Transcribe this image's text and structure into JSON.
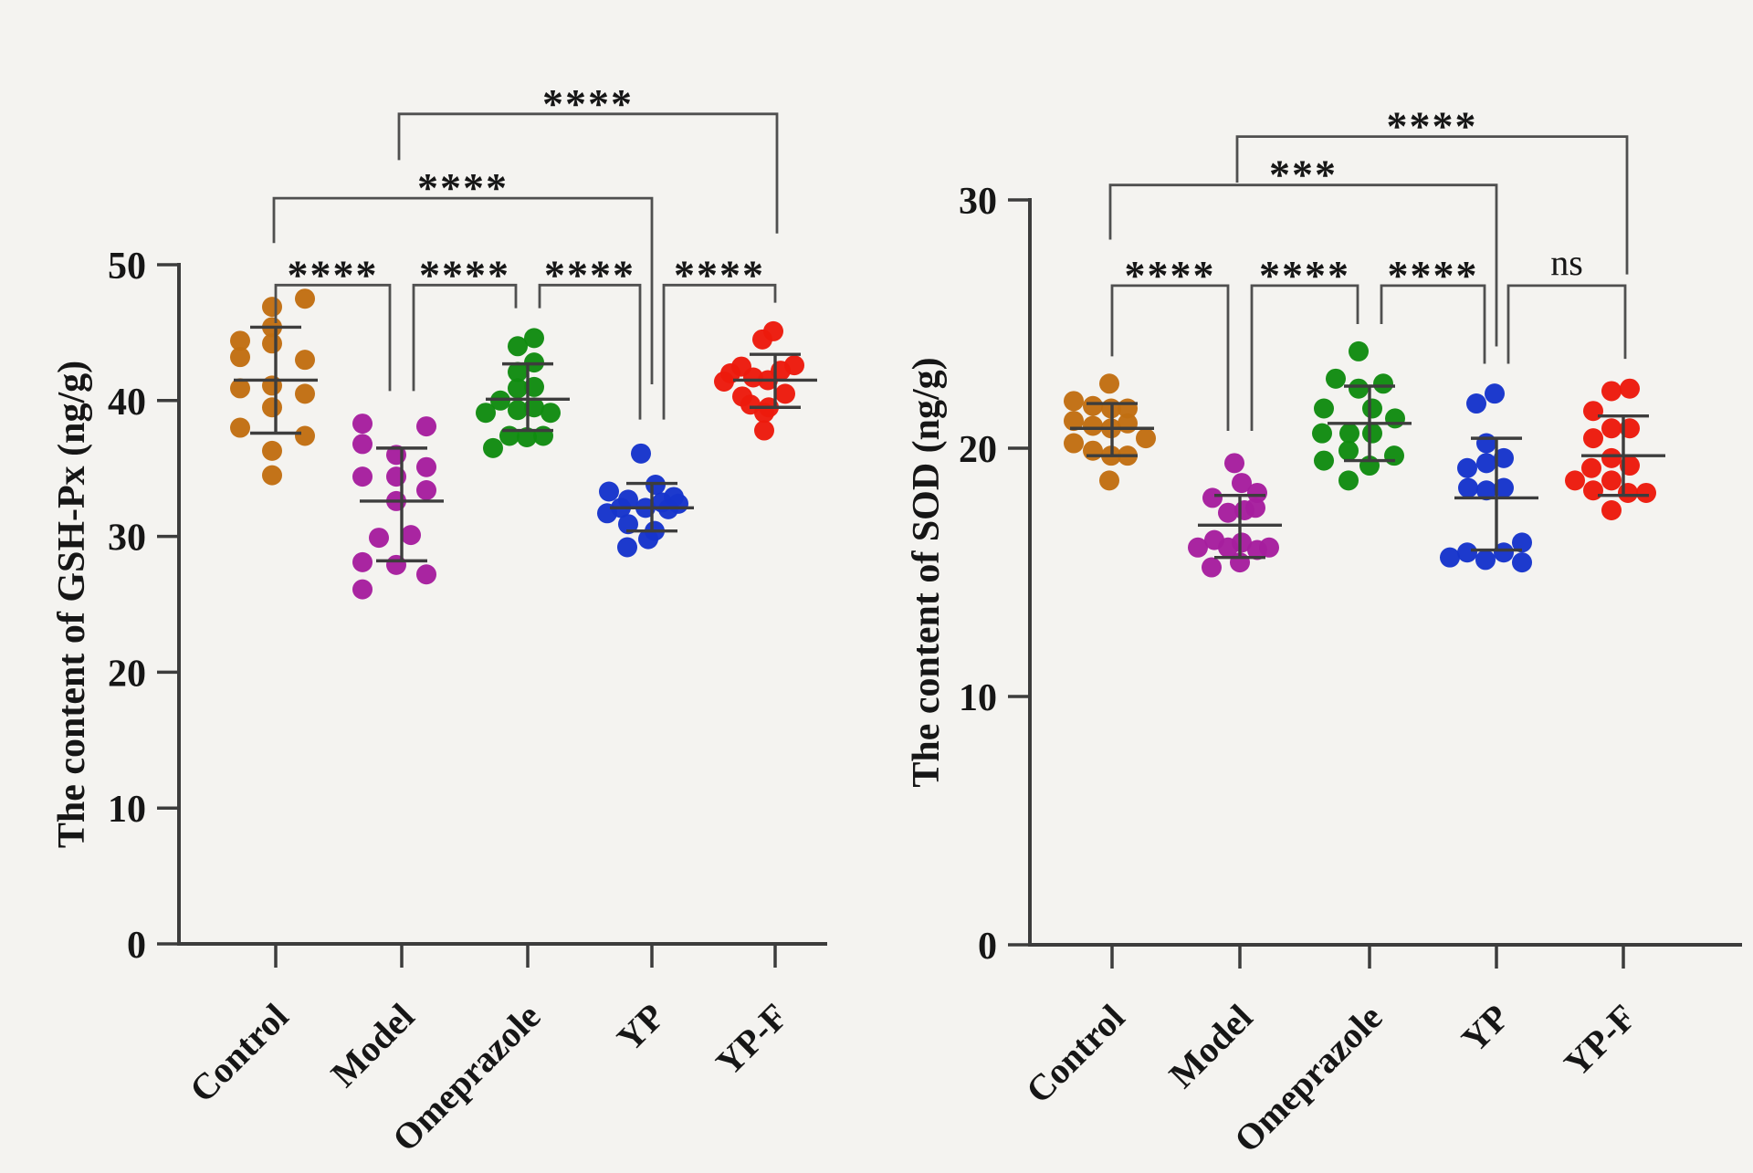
{
  "figure": {
    "background": "#f4f3f0",
    "description": "Two GraphPad-style column scatter plots with mean ± SD error bars and significance brackets"
  },
  "chart_data": [
    {
      "type": "scatter",
      "title": "",
      "xlabel": "",
      "ylabel": "The content of GSH-Px (ng/g)",
      "ylim": [
        0,
        50
      ],
      "yticks": [
        0,
        10,
        20,
        30,
        40,
        50
      ],
      "grid": false,
      "legend_position": "none",
      "categories": [
        "Control",
        "Model",
        "Omeprazole",
        "YP",
        "YP-F"
      ],
      "groups": [
        {
          "name": "Control",
          "color": "#c16e12",
          "mean": 41.5,
          "sd_high": 45.4,
          "sd_low": 37.6,
          "points": [
            [
              47.5,
              32
            ],
            [
              46.9,
              -4
            ],
            [
              45.4,
              -4
            ],
            [
              44.4,
              -39
            ],
            [
              44.2,
              -4
            ],
            [
              43.2,
              -39
            ],
            [
              43.0,
              32
            ],
            [
              41.1,
              -4
            ],
            [
              40.9,
              -39
            ],
            [
              40.5,
              32
            ],
            [
              39.5,
              -4
            ],
            [
              38.0,
              -39
            ],
            [
              37.4,
              32
            ],
            [
              36.3,
              -4
            ],
            [
              34.5,
              -4
            ]
          ]
        },
        {
          "name": "Model",
          "color": "#a61e9e",
          "mean": 32.6,
          "sd_high": 36.5,
          "sd_low": 28.2,
          "points": [
            [
              38.3,
              -43
            ],
            [
              38.1,
              27
            ],
            [
              36.8,
              -43
            ],
            [
              36.0,
              -6
            ],
            [
              35.1,
              27
            ],
            [
              34.4,
              -43
            ],
            [
              34.4,
              -6
            ],
            [
              33.4,
              27
            ],
            [
              32.6,
              -6
            ],
            [
              30.1,
              10
            ],
            [
              29.9,
              -25
            ],
            [
              28.1,
              -43
            ],
            [
              27.9,
              -6
            ],
            [
              27.2,
              27
            ],
            [
              26.1,
              -43
            ]
          ]
        },
        {
          "name": "Omeprazole",
          "color": "#118b11",
          "mean": 40.1,
          "sd_high": 42.7,
          "sd_low": 37.8,
          "points": [
            [
              44.6,
              7
            ],
            [
              44.0,
              -11
            ],
            [
              42.8,
              7
            ],
            [
              42.1,
              -11
            ],
            [
              41.0,
              7
            ],
            [
              40.9,
              -11
            ],
            [
              40.0,
              -30
            ],
            [
              39.5,
              7
            ],
            [
              39.3,
              -11
            ],
            [
              39.1,
              -46
            ],
            [
              39.1,
              25
            ],
            [
              37.4,
              -20
            ],
            [
              37.3,
              -1
            ],
            [
              37.4,
              17
            ],
            [
              36.5,
              -38
            ]
          ]
        },
        {
          "name": "YP",
          "color": "#1634cb",
          "mean": 32.1,
          "sd_high": 33.9,
          "sd_low": 30.4,
          "points": [
            [
              36.1,
              -12
            ],
            [
              33.8,
              4
            ],
            [
              33.3,
              -47
            ],
            [
              32.9,
              24
            ],
            [
              32.7,
              -26
            ],
            [
              32.5,
              11
            ],
            [
              32.4,
              29
            ],
            [
              32.1,
              -34
            ],
            [
              32.1,
              -7
            ],
            [
              31.7,
              -49
            ],
            [
              30.9,
              -26
            ],
            [
              30.4,
              3
            ],
            [
              29.8,
              -4
            ],
            [
              29.2,
              -27
            ],
            [
              32.0,
              18
            ]
          ]
        },
        {
          "name": "YP-F",
          "color": "#ec1a0c",
          "mean": 41.5,
          "sd_high": 43.4,
          "sd_low": 39.5,
          "points": [
            [
              45.1,
              -2
            ],
            [
              44.5,
              -14
            ],
            [
              42.6,
              21
            ],
            [
              42.5,
              -37
            ],
            [
              42.2,
              6
            ],
            [
              42.0,
              -49
            ],
            [
              41.7,
              -24
            ],
            [
              41.5,
              -8
            ],
            [
              41.4,
              -56
            ],
            [
              40.5,
              11
            ],
            [
              40.3,
              -36
            ],
            [
              39.7,
              -27
            ],
            [
              39.5,
              -7
            ],
            [
              39.1,
              -12
            ],
            [
              37.8,
              -12
            ]
          ]
        }
      ],
      "comparisons": [
        {
          "a": 0,
          "b": 1,
          "label": "****",
          "bar": 48.5,
          "legA": 45.7,
          "legB": 40.7,
          "offA": 0,
          "offB": -13
        },
        {
          "a": 1,
          "b": 2,
          "label": "****",
          "bar": 48.5,
          "legA": 40.7,
          "legB": 46.8,
          "offA": 13,
          "offB": -13
        },
        {
          "a": 2,
          "b": 3,
          "label": "****",
          "bar": 48.5,
          "legA": 46.8,
          "legB": 38.6,
          "offA": 13,
          "offB": -13
        },
        {
          "a": 3,
          "b": 4,
          "label": "****",
          "bar": 48.5,
          "legA": 38.6,
          "legB": 47.2,
          "offA": 13,
          "offB": 0
        },
        {
          "a": 0,
          "b": 3,
          "label": "****",
          "bar": 54.9,
          "legA": 51.6,
          "legB": 41.2,
          "offA": -2,
          "offB": 0
        },
        {
          "a": 1,
          "b": 4,
          "label": "****",
          "bar": 61.1,
          "legA": 57.7,
          "legB": 52.3,
          "offA": -3,
          "offB": 2
        }
      ]
    },
    {
      "type": "scatter",
      "title": "",
      "xlabel": "",
      "ylabel": "The content of SOD (ng/g)",
      "ylim": [
        0,
        30
      ],
      "yticks": [
        0,
        10,
        20,
        30
      ],
      "grid": false,
      "legend_position": "none",
      "categories": [
        "Control",
        "Model",
        "Omeprazole",
        "YP",
        "YP-F"
      ],
      "groups": [
        {
          "name": "Control",
          "color": "#c16e12",
          "mean": 20.8,
          "sd_high": 21.8,
          "sd_low": 19.7,
          "points": [
            [
              22.6,
              -3
            ],
            [
              21.9,
              -42
            ],
            [
              21.7,
              -21
            ],
            [
              21.6,
              -1
            ],
            [
              21.6,
              17
            ],
            [
              21.1,
              -42
            ],
            [
              20.9,
              -21
            ],
            [
              20.8,
              -1
            ],
            [
              21.0,
              17
            ],
            [
              20.4,
              37
            ],
            [
              20.2,
              -42
            ],
            [
              19.9,
              -21
            ],
            [
              19.7,
              -1
            ],
            [
              19.7,
              17
            ],
            [
              18.7,
              -3
            ]
          ]
        },
        {
          "name": "Model",
          "color": "#a61e9e",
          "mean": 16.9,
          "sd_high": 18.1,
          "sd_low": 15.6,
          "points": [
            [
              19.4,
              -6
            ],
            [
              18.6,
              2
            ],
            [
              18.2,
              19
            ],
            [
              18.0,
              -30
            ],
            [
              17.6,
              17
            ],
            [
              17.5,
              5
            ],
            [
              17.4,
              -13
            ],
            [
              16.3,
              -28
            ],
            [
              16.2,
              2
            ],
            [
              16.0,
              -46
            ],
            [
              16.0,
              -13
            ],
            [
              15.9,
              19
            ],
            [
              16.0,
              32
            ],
            [
              15.4,
              0
            ],
            [
              15.2,
              -31
            ]
          ]
        },
        {
          "name": "Omeprazole",
          "color": "#118b11",
          "mean": 21.0,
          "sd_high": 22.5,
          "sd_low": 19.5,
          "points": [
            [
              23.9,
              -12
            ],
            [
              22.8,
              -37
            ],
            [
              22.6,
              15
            ],
            [
              22.4,
              -12
            ],
            [
              21.6,
              -50
            ],
            [
              21.6,
              3
            ],
            [
              21.2,
              28
            ],
            [
              20.6,
              -52
            ],
            [
              20.6,
              -22
            ],
            [
              20.6,
              3
            ],
            [
              19.9,
              -23
            ],
            [
              19.7,
              27
            ],
            [
              19.5,
              -50
            ],
            [
              19.3,
              0
            ],
            [
              18.7,
              -23
            ]
          ]
        },
        {
          "name": "YP",
          "color": "#1634cb",
          "mean": 18.0,
          "sd_high": 20.4,
          "sd_low": 15.9,
          "points": [
            [
              22.2,
              -2
            ],
            [
              21.8,
              -22
            ],
            [
              20.2,
              -11
            ],
            [
              19.6,
              8
            ],
            [
              19.4,
              -11
            ],
            [
              19.2,
              -32
            ],
            [
              18.4,
              -31
            ],
            [
              18.4,
              8
            ],
            [
              18.3,
              -11
            ],
            [
              16.2,
              28
            ],
            [
              15.8,
              -32
            ],
            [
              15.8,
              8
            ],
            [
              15.6,
              -51
            ],
            [
              15.5,
              -12
            ],
            [
              15.4,
              28
            ]
          ]
        },
        {
          "name": "YP-F",
          "color": "#ec1a0c",
          "mean": 19.7,
          "sd_high": 21.3,
          "sd_low": 18.1,
          "points": [
            [
              22.4,
              7
            ],
            [
              22.3,
              -13
            ],
            [
              21.5,
              -33
            ],
            [
              20.8,
              -13
            ],
            [
              20.8,
              7
            ],
            [
              20.4,
              -33
            ],
            [
              19.6,
              -13
            ],
            [
              19.3,
              7
            ],
            [
              19.2,
              -35
            ],
            [
              18.7,
              -53
            ],
            [
              18.7,
              -13
            ],
            [
              18.3,
              -33
            ],
            [
              18.2,
              5
            ],
            [
              18.2,
              25
            ],
            [
              17.5,
              -13
            ]
          ]
        }
      ],
      "comparisons": [
        {
          "a": 0,
          "b": 1,
          "label": "****",
          "bar": 26.55,
          "legA": 23.7,
          "legB": 20.7,
          "offA": 0,
          "offB": -13
        },
        {
          "a": 1,
          "b": 2,
          "label": "****",
          "bar": 26.55,
          "legA": 20.7,
          "legB": 25.0,
          "offA": 13,
          "offB": -13
        },
        {
          "a": 2,
          "b": 3,
          "label": "****",
          "bar": 26.55,
          "legA": 25.0,
          "legB": 23.4,
          "offA": 13,
          "offB": -13
        },
        {
          "a": 3,
          "b": 4,
          "label": "ns",
          "bar": 26.55,
          "legA": 23.4,
          "legB": 23.6,
          "offA": 13,
          "offB": 2
        },
        {
          "a": 0,
          "b": 3,
          "label": "***",
          "bar": 30.6,
          "legA": 28.4,
          "legB": 24.1,
          "offA": -2,
          "offB": 0
        },
        {
          "a": 1,
          "b": 4,
          "label": "****",
          "bar": 32.55,
          "legA": 30.7,
          "legB": 27.0,
          "offA": -3,
          "offB": 4
        }
      ]
    }
  ]
}
